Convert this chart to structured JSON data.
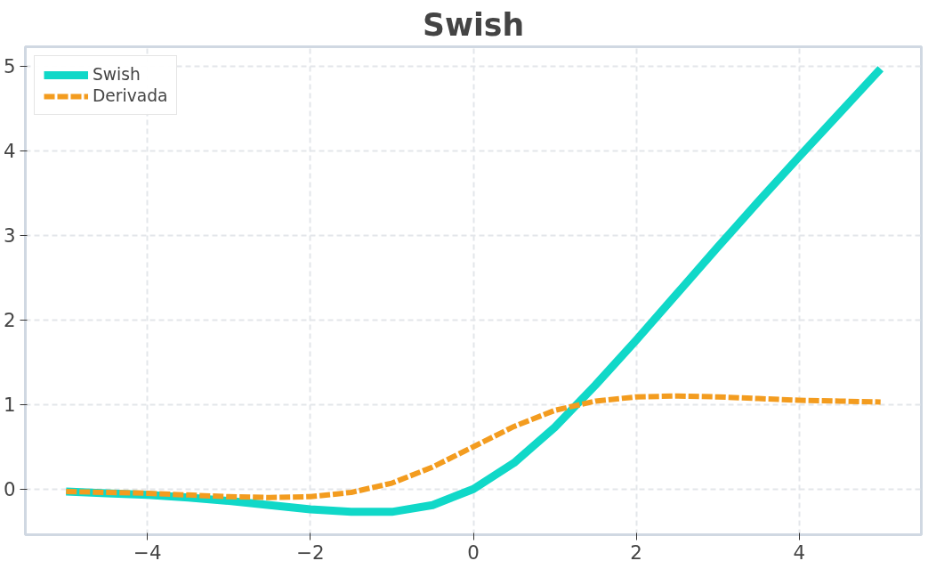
{
  "chart_data": {
    "type": "line",
    "title": "Swish",
    "x": [
      -5,
      -4.5,
      -4,
      -3.5,
      -3,
      -2.5,
      -2,
      -1.5,
      -1,
      -0.5,
      0,
      0.5,
      1,
      1.5,
      2,
      2.5,
      3,
      3.5,
      4,
      4.5,
      5
    ],
    "series": [
      {
        "name": "Swish",
        "color": "#10d8c8",
        "line_style": "solid",
        "values": [
          -0.03,
          -0.05,
          -0.07,
          -0.1,
          -0.14,
          -0.19,
          -0.24,
          -0.27,
          -0.27,
          -0.19,
          0,
          0.31,
          0.73,
          1.23,
          1.76,
          2.31,
          2.86,
          3.4,
          3.93,
          4.45,
          4.97
        ]
      },
      {
        "name": "Derivada",
        "color": "#f39c1f",
        "line_style": "dashed",
        "values": [
          -0.03,
          -0.04,
          -0.05,
          -0.07,
          -0.09,
          -0.1,
          -0.09,
          -0.04,
          0.07,
          0.26,
          0.5,
          0.74,
          0.93,
          1.04,
          1.09,
          1.1,
          1.09,
          1.07,
          1.05,
          1.04,
          1.03
        ]
      }
    ],
    "xlim": [
      -5.5,
      5.5
    ],
    "ylim": [
      -0.54,
      5.23
    ],
    "xticks": [
      -4,
      -2,
      0,
      2,
      4
    ],
    "yticks": [
      0,
      1,
      2,
      3,
      4,
      5
    ],
    "grid": true,
    "legend": "top left",
    "marker": "none"
  }
}
